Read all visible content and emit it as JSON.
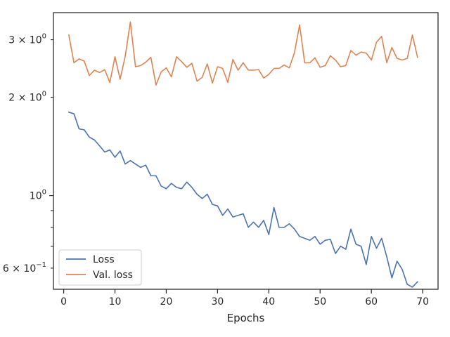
{
  "chart_data": {
    "type": "line",
    "title": "",
    "xlabel": "Epochs",
    "ylabel": "",
    "xlim": [
      -2,
      73
    ],
    "ylim": [
      0.517,
      3.63
    ],
    "yscale": "log",
    "grid": false,
    "legend_position": "lower-left",
    "x_ticks": [
      0,
      10,
      20,
      30,
      40,
      50,
      60,
      70
    ],
    "x_tick_labels": [
      "0",
      "10",
      "20",
      "30",
      "40",
      "50",
      "60",
      "70"
    ],
    "y_major_ticks": [
      {
        "value": 1.0,
        "base": "10",
        "exp": "0"
      }
    ],
    "y_minor_ticks": [
      {
        "value": 0.6,
        "mant": "6",
        "base": "10",
        "exp": "−1"
      },
      {
        "value": 2.0,
        "mant": "2",
        "base": "10",
        "exp": "0"
      },
      {
        "value": 3.0,
        "mant": "3",
        "base": "10",
        "exp": "0"
      }
    ],
    "y_minor_unlabeled": [
      0.7,
      0.8,
      0.9
    ],
    "x": [
      1,
      2,
      3,
      4,
      5,
      6,
      7,
      8,
      9,
      10,
      11,
      12,
      13,
      14,
      15,
      16,
      17,
      18,
      19,
      20,
      21,
      22,
      23,
      24,
      25,
      26,
      27,
      28,
      29,
      30,
      31,
      32,
      33,
      34,
      35,
      36,
      37,
      38,
      39,
      40,
      41,
      42,
      43,
      44,
      45,
      46,
      47,
      48,
      49,
      50,
      51,
      52,
      53,
      54,
      55,
      56,
      57,
      58,
      59,
      60,
      61,
      62,
      63,
      64,
      65,
      66,
      67,
      68,
      69
    ],
    "series": [
      {
        "name": "Loss",
        "color": "#4c72b0",
        "values": [
          1.8,
          1.78,
          1.6,
          1.59,
          1.51,
          1.48,
          1.42,
          1.36,
          1.38,
          1.31,
          1.37,
          1.25,
          1.28,
          1.25,
          1.22,
          1.24,
          1.15,
          1.15,
          1.07,
          1.05,
          1.09,
          1.06,
          1.05,
          1.1,
          1.06,
          1.01,
          0.98,
          1.01,
          0.94,
          0.93,
          0.87,
          0.91,
          0.86,
          0.87,
          0.88,
          0.8,
          0.83,
          0.8,
          0.84,
          0.76,
          0.92,
          0.8,
          0.8,
          0.82,
          0.79,
          0.75,
          0.74,
          0.73,
          0.75,
          0.71,
          0.73,
          0.735,
          0.665,
          0.7,
          0.685,
          0.79,
          0.71,
          0.7,
          0.615,
          0.75,
          0.69,
          0.74,
          0.65,
          0.56,
          0.63,
          0.595,
          0.535,
          0.525,
          0.545
        ]
      },
      {
        "name": "Val. loss",
        "color": "#dd8452",
        "values": [
          3.1,
          2.55,
          2.62,
          2.58,
          2.33,
          2.42,
          2.38,
          2.43,
          2.22,
          2.66,
          2.27,
          2.67,
          3.4,
          2.48,
          2.5,
          2.56,
          2.65,
          2.18,
          2.39,
          2.46,
          2.31,
          2.66,
          2.57,
          2.47,
          2.54,
          2.24,
          2.3,
          2.53,
          2.21,
          2.48,
          2.45,
          2.22,
          2.61,
          2.42,
          2.55,
          2.42,
          2.42,
          2.43,
          2.29,
          2.35,
          2.45,
          2.45,
          2.51,
          2.46,
          2.74,
          3.33,
          2.55,
          2.55,
          2.64,
          2.47,
          2.5,
          2.68,
          2.6,
          2.48,
          2.5,
          2.78,
          2.69,
          2.75,
          2.73,
          2.6,
          2.95,
          3.07,
          2.55,
          2.84,
          2.63,
          2.6,
          2.63,
          3.1,
          2.65
        ]
      }
    ]
  }
}
